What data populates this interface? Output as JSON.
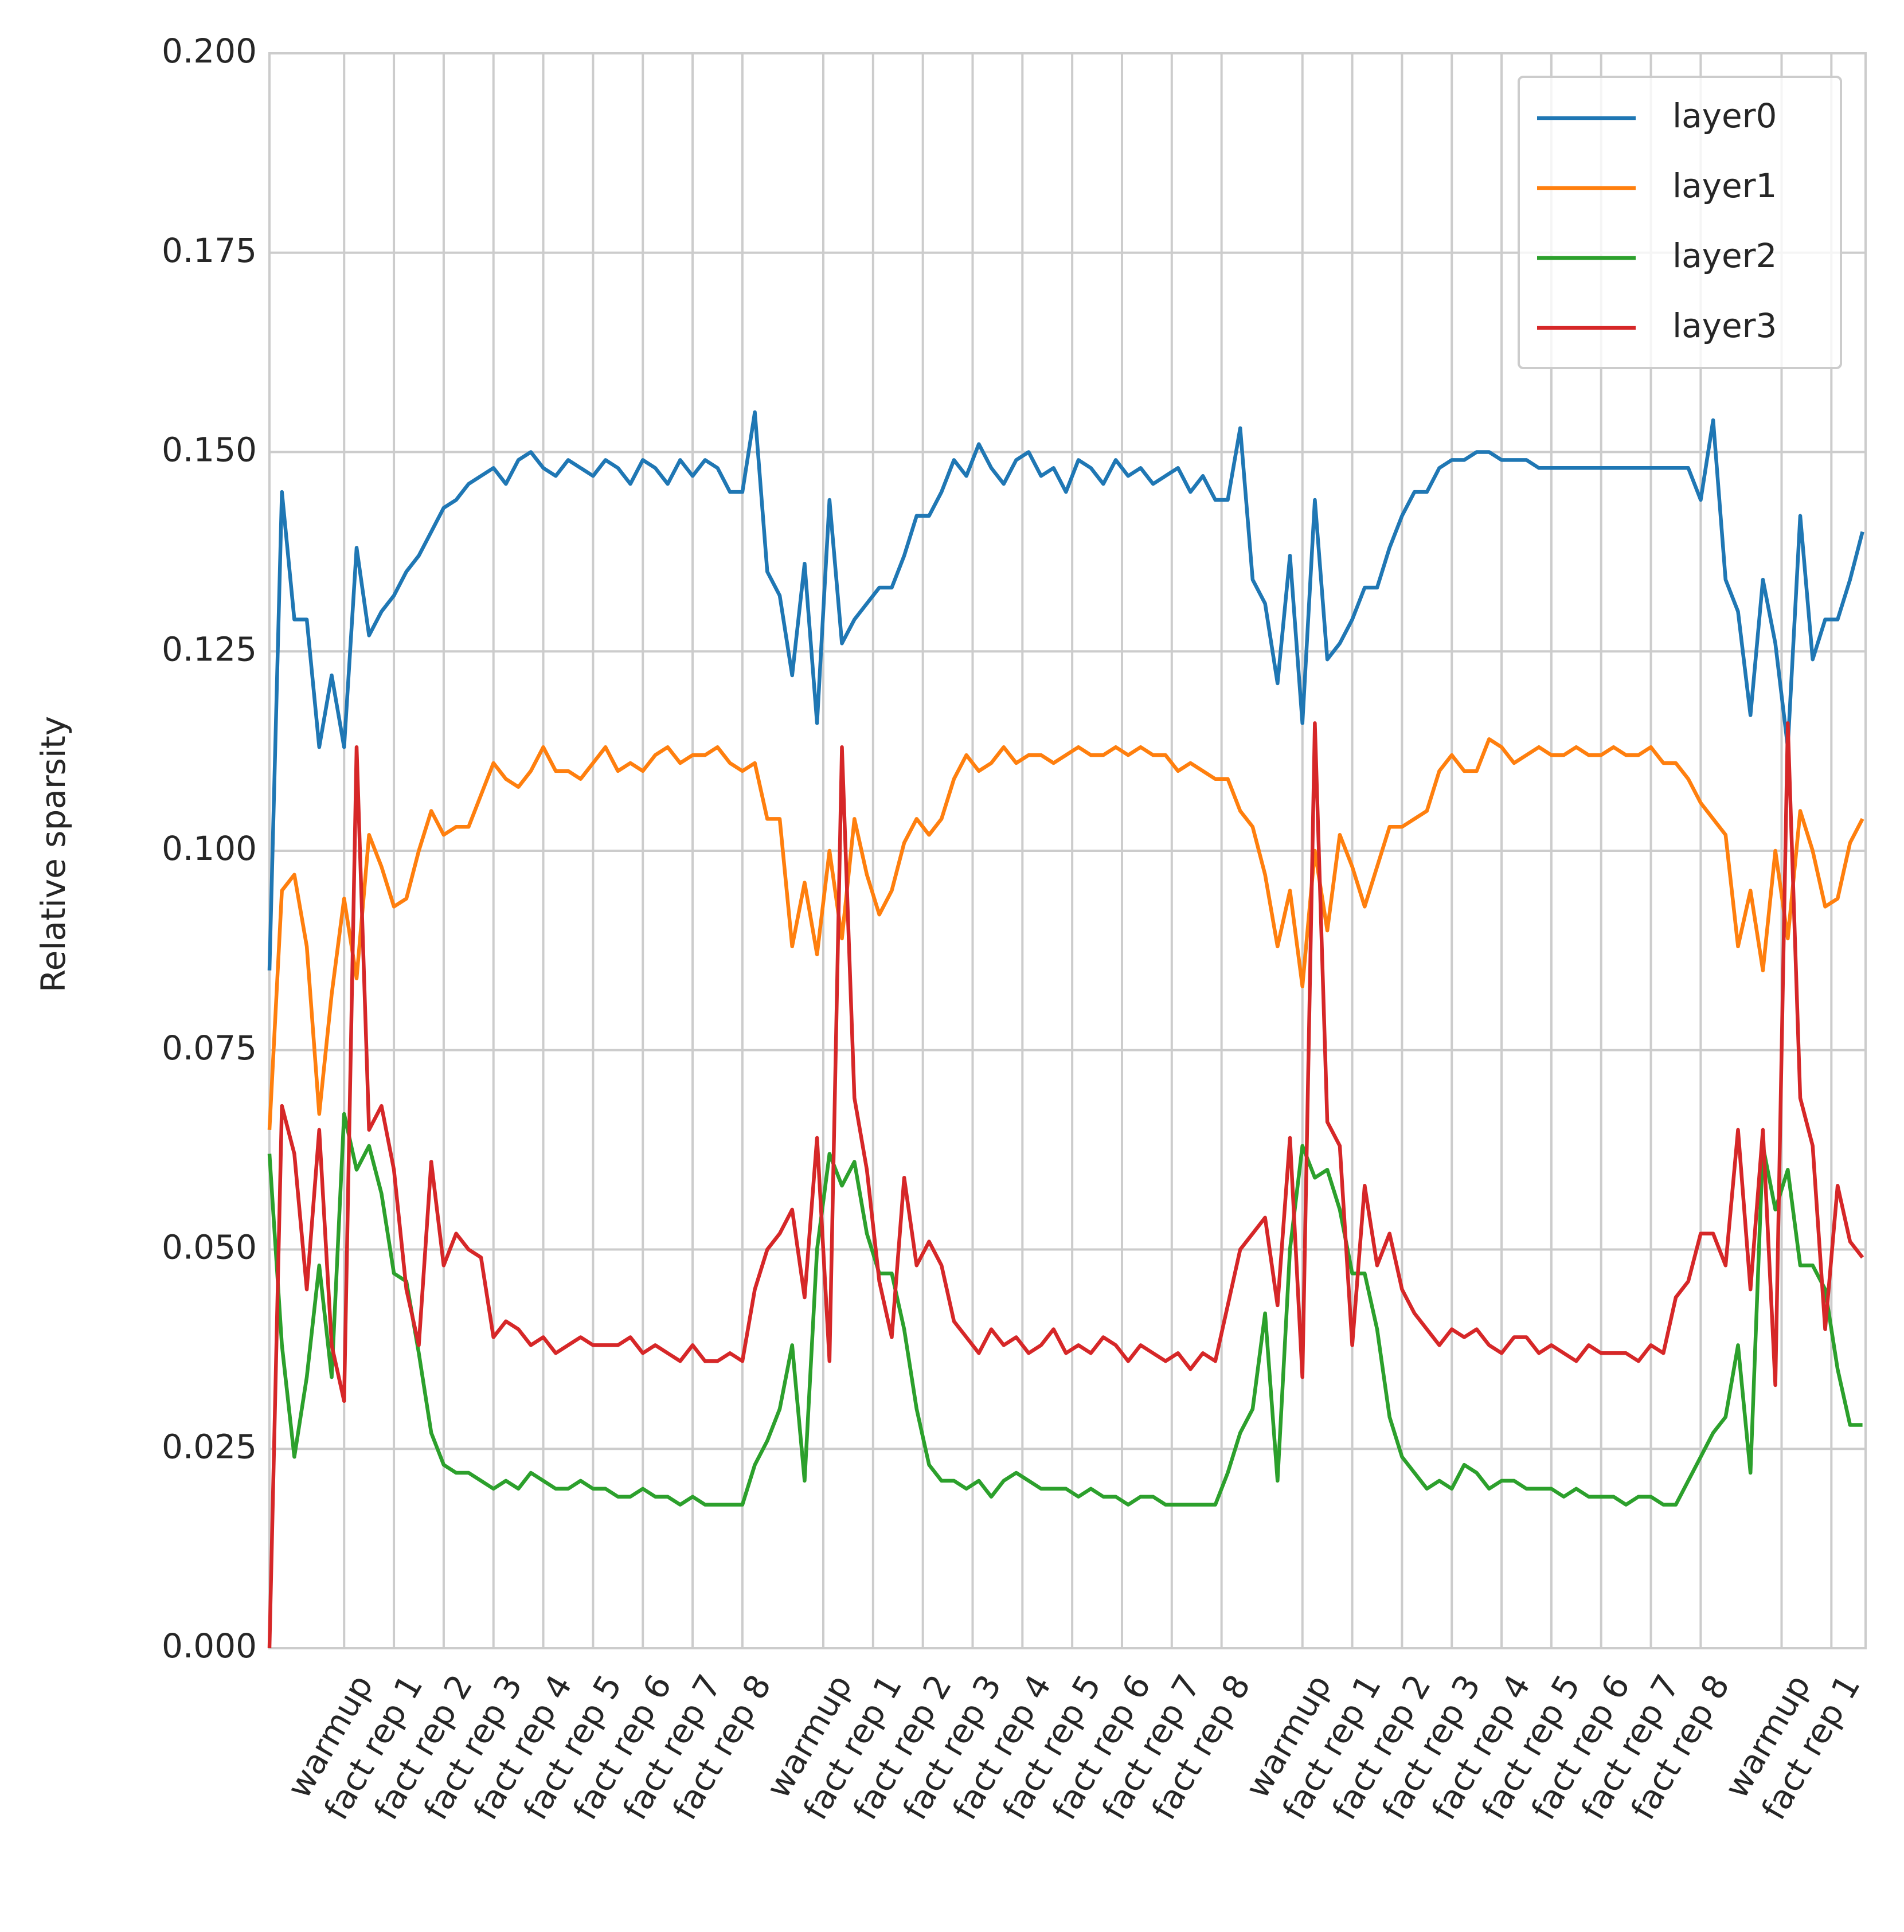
{
  "chart_data": {
    "type": "line",
    "ylabel": "Relative sparsity",
    "x": [
      0,
      2,
      4,
      6,
      8,
      10,
      12,
      14,
      16,
      18,
      20,
      22,
      24,
      26,
      28,
      30,
      32,
      34,
      36,
      38,
      40,
      42,
      44,
      46,
      48,
      50,
      52,
      54,
      56,
      58,
      60,
      62,
      64,
      66,
      68,
      70,
      72,
      74,
      76,
      78,
      80,
      82,
      84,
      86,
      88,
      90,
      92,
      94,
      96,
      98,
      100,
      102,
      104,
      106,
      108,
      110,
      112,
      114,
      116,
      118,
      120,
      122,
      124,
      126,
      128,
      130,
      132,
      134,
      136,
      138,
      140,
      142,
      144,
      146,
      148,
      150,
      152,
      154,
      156,
      158,
      160,
      162,
      164,
      166,
      168,
      170,
      172,
      174,
      176,
      178,
      180,
      182,
      184,
      186,
      188,
      190,
      192,
      194,
      196,
      198,
      200,
      202,
      204,
      206,
      208,
      210,
      212,
      214,
      216,
      218,
      220,
      222,
      224,
      226,
      228,
      230,
      232,
      234,
      236,
      238,
      240,
      242,
      244,
      246,
      248,
      250,
      252,
      254,
      256
    ],
    "series": [
      {
        "name": "layer0",
        "color": "#1f77b4",
        "values": [
          0.085,
          0.145,
          0.129,
          0.129,
          0.113,
          0.122,
          0.113,
          0.138,
          0.127,
          0.13,
          0.132,
          0.135,
          0.137,
          0.14,
          0.143,
          0.144,
          0.146,
          0.147,
          0.148,
          0.146,
          0.149,
          0.15,
          0.148,
          0.147,
          0.149,
          0.148,
          0.147,
          0.149,
          0.148,
          0.146,
          0.149,
          0.148,
          0.146,
          0.149,
          0.147,
          0.149,
          0.148,
          0.145,
          0.145,
          0.155,
          0.135,
          0.132,
          0.122,
          0.136,
          0.116,
          0.144,
          0.126,
          0.129,
          0.131,
          0.133,
          0.133,
          0.137,
          0.142,
          0.142,
          0.145,
          0.149,
          0.147,
          0.151,
          0.148,
          0.146,
          0.149,
          0.15,
          0.147,
          0.148,
          0.145,
          0.149,
          0.148,
          0.146,
          0.149,
          0.147,
          0.148,
          0.146,
          0.147,
          0.148,
          0.145,
          0.147,
          0.144,
          0.144,
          0.153,
          0.134,
          0.131,
          0.121,
          0.137,
          0.116,
          0.144,
          0.124,
          0.126,
          0.129,
          0.133,
          0.133,
          0.138,
          0.142,
          0.145,
          0.145,
          0.148,
          0.149,
          0.149,
          0.15,
          0.15,
          0.149,
          0.149,
          0.149,
          0.148,
          0.148,
          0.148,
          0.148,
          0.148,
          0.148,
          0.148,
          0.148,
          0.148,
          0.148,
          0.148,
          0.148,
          0.148,
          0.144,
          0.154,
          0.134,
          0.13,
          0.117,
          0.134,
          0.126,
          0.113,
          0.142,
          0.124,
          0.129,
          0.129,
          0.134,
          0.14
        ]
      },
      {
        "name": "layer1",
        "color": "#ff7f0e",
        "values": [
          0.065,
          0.095,
          0.097,
          0.088,
          0.067,
          0.082,
          0.094,
          0.084,
          0.102,
          0.098,
          0.093,
          0.094,
          0.1,
          0.105,
          0.102,
          0.103,
          0.103,
          0.107,
          0.111,
          0.109,
          0.108,
          0.11,
          0.113,
          0.11,
          0.11,
          0.109,
          0.111,
          0.113,
          0.11,
          0.111,
          0.11,
          0.112,
          0.113,
          0.111,
          0.112,
          0.112,
          0.113,
          0.111,
          0.11,
          0.111,
          0.104,
          0.104,
          0.088,
          0.096,
          0.087,
          0.1,
          0.089,
          0.104,
          0.097,
          0.092,
          0.095,
          0.101,
          0.104,
          0.102,
          0.104,
          0.109,
          0.112,
          0.11,
          0.111,
          0.113,
          0.111,
          0.112,
          0.112,
          0.111,
          0.112,
          0.113,
          0.112,
          0.112,
          0.113,
          0.112,
          0.113,
          0.112,
          0.112,
          0.11,
          0.111,
          0.11,
          0.109,
          0.109,
          0.105,
          0.103,
          0.097,
          0.088,
          0.095,
          0.083,
          0.1,
          0.09,
          0.102,
          0.098,
          0.093,
          0.098,
          0.103,
          0.103,
          0.104,
          0.105,
          0.11,
          0.112,
          0.11,
          0.11,
          0.114,
          0.113,
          0.111,
          0.112,
          0.113,
          0.112,
          0.112,
          0.113,
          0.112,
          0.112,
          0.113,
          0.112,
          0.112,
          0.113,
          0.111,
          0.111,
          0.109,
          0.106,
          0.104,
          0.102,
          0.088,
          0.095,
          0.085,
          0.1,
          0.089,
          0.105,
          0.1,
          0.093,
          0.094,
          0.101,
          0.104
        ]
      },
      {
        "name": "layer2",
        "color": "#2ca02c",
        "values": [
          0.062,
          0.038,
          0.024,
          0.034,
          0.048,
          0.034,
          0.067,
          0.06,
          0.063,
          0.057,
          0.047,
          0.046,
          0.037,
          0.027,
          0.023,
          0.022,
          0.022,
          0.021,
          0.02,
          0.021,
          0.02,
          0.022,
          0.021,
          0.02,
          0.02,
          0.021,
          0.02,
          0.02,
          0.019,
          0.019,
          0.02,
          0.019,
          0.019,
          0.018,
          0.019,
          0.018,
          0.018,
          0.018,
          0.018,
          0.023,
          0.026,
          0.03,
          0.038,
          0.021,
          0.05,
          0.062,
          0.058,
          0.061,
          0.052,
          0.047,
          0.047,
          0.04,
          0.03,
          0.023,
          0.021,
          0.021,
          0.02,
          0.021,
          0.019,
          0.021,
          0.022,
          0.021,
          0.02,
          0.02,
          0.02,
          0.019,
          0.02,
          0.019,
          0.019,
          0.018,
          0.019,
          0.019,
          0.018,
          0.018,
          0.018,
          0.018,
          0.018,
          0.022,
          0.027,
          0.03,
          0.042,
          0.021,
          0.05,
          0.063,
          0.059,
          0.06,
          0.055,
          0.047,
          0.047,
          0.04,
          0.029,
          0.024,
          0.022,
          0.02,
          0.021,
          0.02,
          0.023,
          0.022,
          0.02,
          0.021,
          0.021,
          0.02,
          0.02,
          0.02,
          0.019,
          0.02,
          0.019,
          0.019,
          0.019,
          0.018,
          0.019,
          0.019,
          0.018,
          0.018,
          0.021,
          0.024,
          0.027,
          0.029,
          0.038,
          0.022,
          0.063,
          0.055,
          0.06,
          0.048,
          0.048,
          0.045,
          0.035,
          0.028,
          0.028
        ]
      },
      {
        "name": "layer3",
        "color": "#d62728",
        "values": [
          0.0,
          0.068,
          0.062,
          0.045,
          0.065,
          0.038,
          0.031,
          0.113,
          0.065,
          0.068,
          0.06,
          0.045,
          0.038,
          0.061,
          0.048,
          0.052,
          0.05,
          0.049,
          0.039,
          0.041,
          0.04,
          0.038,
          0.039,
          0.037,
          0.038,
          0.039,
          0.038,
          0.038,
          0.038,
          0.039,
          0.037,
          0.038,
          0.037,
          0.036,
          0.038,
          0.036,
          0.036,
          0.037,
          0.036,
          0.045,
          0.05,
          0.052,
          0.055,
          0.044,
          0.064,
          0.036,
          0.113,
          0.069,
          0.06,
          0.046,
          0.039,
          0.059,
          0.048,
          0.051,
          0.048,
          0.041,
          0.039,
          0.037,
          0.04,
          0.038,
          0.039,
          0.037,
          0.038,
          0.04,
          0.037,
          0.038,
          0.037,
          0.039,
          0.038,
          0.036,
          0.038,
          0.037,
          0.036,
          0.037,
          0.035,
          0.037,
          0.036,
          0.043,
          0.05,
          0.052,
          0.054,
          0.043,
          0.064,
          0.034,
          0.116,
          0.066,
          0.063,
          0.038,
          0.058,
          0.048,
          0.052,
          0.045,
          0.042,
          0.04,
          0.038,
          0.04,
          0.039,
          0.04,
          0.038,
          0.037,
          0.039,
          0.039,
          0.037,
          0.038,
          0.037,
          0.036,
          0.038,
          0.037,
          0.037,
          0.037,
          0.036,
          0.038,
          0.037,
          0.044,
          0.046,
          0.052,
          0.052,
          0.048,
          0.065,
          0.045,
          0.065,
          0.033,
          0.116,
          0.069,
          0.063,
          0.04,
          0.058,
          0.051,
          0.049
        ]
      }
    ],
    "xlim": [
      0,
      256.5
    ],
    "xticks": [
      {
        "value": 12,
        "label": "warmup"
      },
      {
        "value": 20,
        "label": "fact rep 1"
      },
      {
        "value": 28,
        "label": "fact rep 2"
      },
      {
        "value": 36,
        "label": "fact rep 3"
      },
      {
        "value": 44,
        "label": "fact rep 4"
      },
      {
        "value": 52,
        "label": "fact rep 5"
      },
      {
        "value": 60,
        "label": "fact rep 6"
      },
      {
        "value": 68,
        "label": "fact rep 7"
      },
      {
        "value": 76,
        "label": "fact rep 8"
      },
      {
        "value": 89,
        "label": "warmup"
      },
      {
        "value": 97,
        "label": "fact rep 1"
      },
      {
        "value": 105,
        "label": "fact rep 2"
      },
      {
        "value": 113,
        "label": "fact rep 3"
      },
      {
        "value": 121,
        "label": "fact rep 4"
      },
      {
        "value": 129,
        "label": "fact rep 5"
      },
      {
        "value": 137,
        "label": "fact rep 6"
      },
      {
        "value": 145,
        "label": "fact rep 7"
      },
      {
        "value": 153,
        "label": "fact rep 8"
      },
      {
        "value": 166,
        "label": "warmup"
      },
      {
        "value": 174,
        "label": "fact rep 1"
      },
      {
        "value": 182,
        "label": "fact rep 2"
      },
      {
        "value": 190,
        "label": "fact rep 3"
      },
      {
        "value": 198,
        "label": "fact rep 4"
      },
      {
        "value": 206,
        "label": "fact rep 5"
      },
      {
        "value": 214,
        "label": "fact rep 6"
      },
      {
        "value": 222,
        "label": "fact rep 7"
      },
      {
        "value": 230,
        "label": "fact rep 8"
      },
      {
        "value": 243,
        "label": "warmup"
      },
      {
        "value": 251,
        "label": "fact rep 1"
      }
    ],
    "ylim": [
      0,
      0.2
    ],
    "yticks": [
      {
        "value": 0,
        "label": "0.000"
      },
      0.025,
      {
        "value": 0.05,
        "label": "0.050"
      },
      0.075,
      {
        "value": 0.1,
        "label": "0.100"
      },
      0.125,
      {
        "value": 0.15,
        "label": "0.150"
      },
      0.175,
      {
        "value": 0.2,
        "label": "0.200"
      }
    ],
    "grid": true,
    "legend": "upper right"
  }
}
